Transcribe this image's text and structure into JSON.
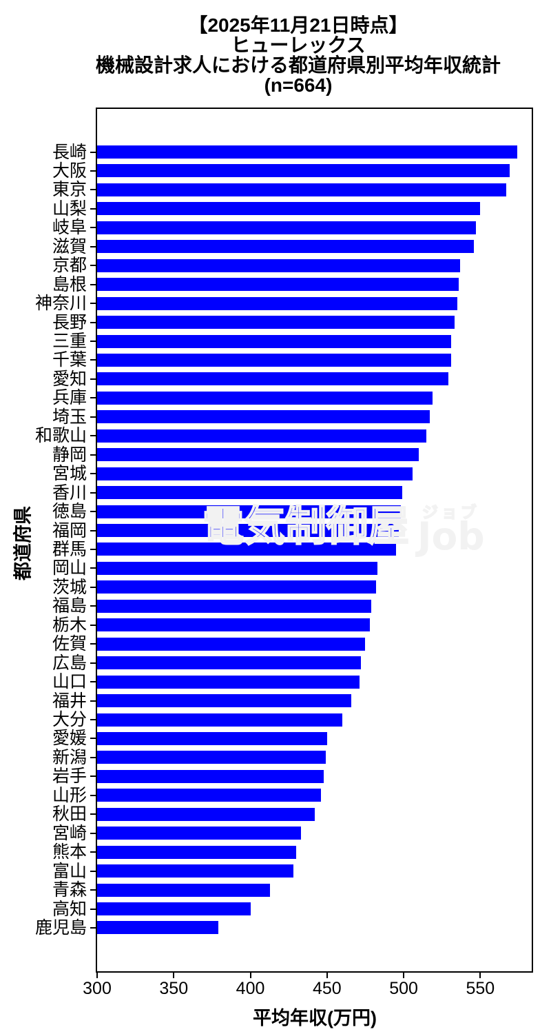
{
  "title": {
    "line1": "【2025年11月21日時点】",
    "line2": "ヒューレックス",
    "line3": "機械設計求人における都道府県別平均年収統計",
    "line4": "(n=664)"
  },
  "watermark": {
    "kanji": "電気制御屋",
    "furigana": "ジョブ",
    "latin": "Job"
  },
  "colors": {
    "bar": "#0000ff",
    "text": "#000000",
    "spine": "#000000",
    "background": "#ffffff",
    "watermark": "#f2f2f2"
  },
  "chart_data": {
    "type": "bar",
    "orientation": "horizontal",
    "title": "【2025年11月21日時点】 ヒューレックス 機械設計求人における都道府県別平均年収統計 (n=664)",
    "xlabel": "平均年収(万円)",
    "ylabel": "都道府県",
    "xlim": [
      300,
      584
    ],
    "xticks": [
      300,
      350,
      400,
      450,
      500,
      550
    ],
    "grid": false,
    "legend": "none",
    "bar_color": "#0000ff",
    "categories": [
      "長崎",
      "大阪",
      "東京",
      "山梨",
      "岐阜",
      "滋賀",
      "京都",
      "島根",
      "神奈川",
      "長野",
      "三重",
      "千葉",
      "愛知",
      "兵庫",
      "埼玉",
      "和歌山",
      "静岡",
      "宮城",
      "香川",
      "徳島",
      "福岡",
      "群馬",
      "岡山",
      "茨城",
      "福島",
      "栃木",
      "佐賀",
      "広島",
      "山口",
      "福井",
      "大分",
      "愛媛",
      "新潟",
      "岩手",
      "山形",
      "秋田",
      "宮崎",
      "熊本",
      "富山",
      "青森",
      "高知",
      "鹿児島"
    ],
    "values": [
      574,
      569,
      567,
      550,
      547,
      546,
      537,
      536,
      535,
      533,
      531,
      531,
      529,
      519,
      517,
      515,
      510,
      506,
      499,
      498,
      497,
      495,
      483,
      482,
      479,
      478,
      475,
      472,
      471,
      466,
      460,
      450,
      449,
      448,
      446,
      442,
      433,
      430,
      428,
      413,
      400,
      379
    ]
  }
}
